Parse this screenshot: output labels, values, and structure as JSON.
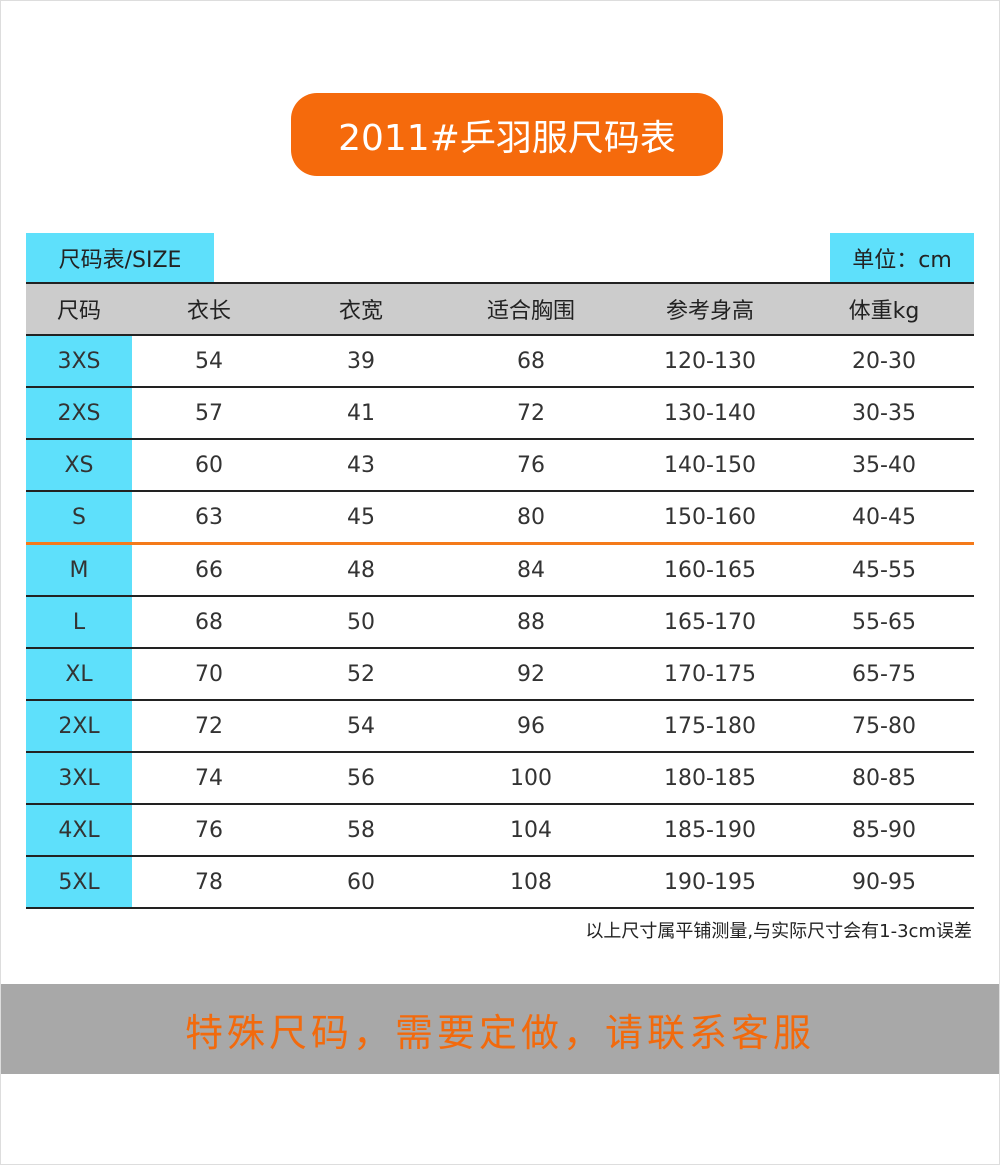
{
  "title": "2011#乒羽服尺码表",
  "size_tag": "尺码表/SIZE",
  "unit_tag": "单位：cm",
  "headers": [
    "尺码",
    "衣长",
    "衣宽",
    "适合胸围",
    "参考身高",
    "体重kg"
  ],
  "rows": [
    [
      "3XS",
      "54",
      "39",
      "68",
      "120-130",
      "20-30"
    ],
    [
      "2XS",
      "57",
      "41",
      "72",
      "130-140",
      "30-35"
    ],
    [
      "XS",
      "60",
      "43",
      "76",
      "140-150",
      "35-40"
    ],
    [
      "S",
      "63",
      "45",
      "80",
      "150-160",
      "40-45"
    ],
    [
      "M",
      "66",
      "48",
      "84",
      "160-165",
      "45-55"
    ],
    [
      "L",
      "68",
      "50",
      "88",
      "165-170",
      "55-65"
    ],
    [
      "XL",
      "70",
      "52",
      "92",
      "170-175",
      "65-75"
    ],
    [
      "2XL",
      "72",
      "54",
      "96",
      "175-180",
      "75-80"
    ],
    [
      "3XL",
      "74",
      "56",
      "100",
      "180-185",
      "80-85"
    ],
    [
      "4XL",
      "76",
      "58",
      "104",
      "185-190",
      "85-90"
    ],
    [
      "5XL",
      "78",
      "60",
      "108",
      "190-195",
      "90-95"
    ]
  ],
  "note": "以上尺寸属平铺测量,与实际尺寸会有1-3cm误差",
  "banner": "特殊尺码，需要定做，请联系客服",
  "colors": {
    "accent": "#f56a0c",
    "cyan": "#5ee0fb",
    "header_gray": "#cccccc",
    "banner_gray": "#a8a8a8"
  }
}
